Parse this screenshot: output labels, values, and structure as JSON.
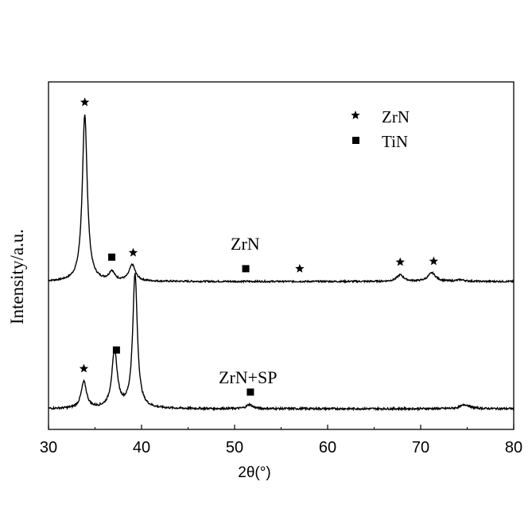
{
  "chart_data": {
    "type": "line",
    "title": "",
    "xlabel": "2θ(°)",
    "ylabel": "Intensity/a.u.",
    "xlim": [
      30,
      80
    ],
    "xticks": [
      30,
      40,
      50,
      60,
      70,
      80
    ],
    "y_tick_labels": false,
    "grid": false,
    "legend": {
      "position": "top-right",
      "entries": [
        {
          "marker": "star",
          "label": "ZrN"
        },
        {
          "marker": "square",
          "label": "TiN"
        }
      ]
    },
    "series": [
      {
        "name": "ZrN",
        "baseline": 0,
        "noise": 0.4,
        "peaks": [
          {
            "x": 33.9,
            "height": 82,
            "width": 0.32
          },
          {
            "x": 36.8,
            "height": 4.5,
            "width": 0.35
          },
          {
            "x": 39.0,
            "height": 8,
            "width": 0.4
          },
          {
            "x": 67.8,
            "height": 3.2,
            "width": 0.45
          },
          {
            "x": 71.2,
            "height": 4.2,
            "width": 0.5
          },
          {
            "x": 74.3,
            "height": 0.8,
            "width": 0.5
          }
        ],
        "markers": [
          {
            "x": 33.9,
            "symbol": "star"
          },
          {
            "x": 36.8,
            "symbol": "square"
          },
          {
            "x": 39.1,
            "symbol": "star"
          },
          {
            "x": 51.2,
            "symbol": "square"
          },
          {
            "x": 57.0,
            "symbol": "star"
          },
          {
            "x": 67.8,
            "symbol": "star"
          },
          {
            "x": 71.4,
            "symbol": "star"
          }
        ],
        "label": "ZrN"
      },
      {
        "name": "ZrN+SP",
        "baseline": 0,
        "noise": 0.5,
        "peaks": [
          {
            "x": 33.8,
            "height": 13,
            "width": 0.35
          },
          {
            "x": 37.1,
            "height": 28,
            "width": 0.35
          },
          {
            "x": 39.3,
            "height": 66,
            "width": 0.3
          },
          {
            "x": 51.6,
            "height": 2,
            "width": 0.4
          },
          {
            "x": 74.8,
            "height": 2,
            "width": 0.6
          }
        ],
        "markers": [
          {
            "x": 33.8,
            "symbol": "star"
          },
          {
            "x": 37.3,
            "symbol": "square"
          },
          {
            "x": 51.7,
            "symbol": "square"
          }
        ],
        "label": "ZrN+SP"
      }
    ]
  }
}
